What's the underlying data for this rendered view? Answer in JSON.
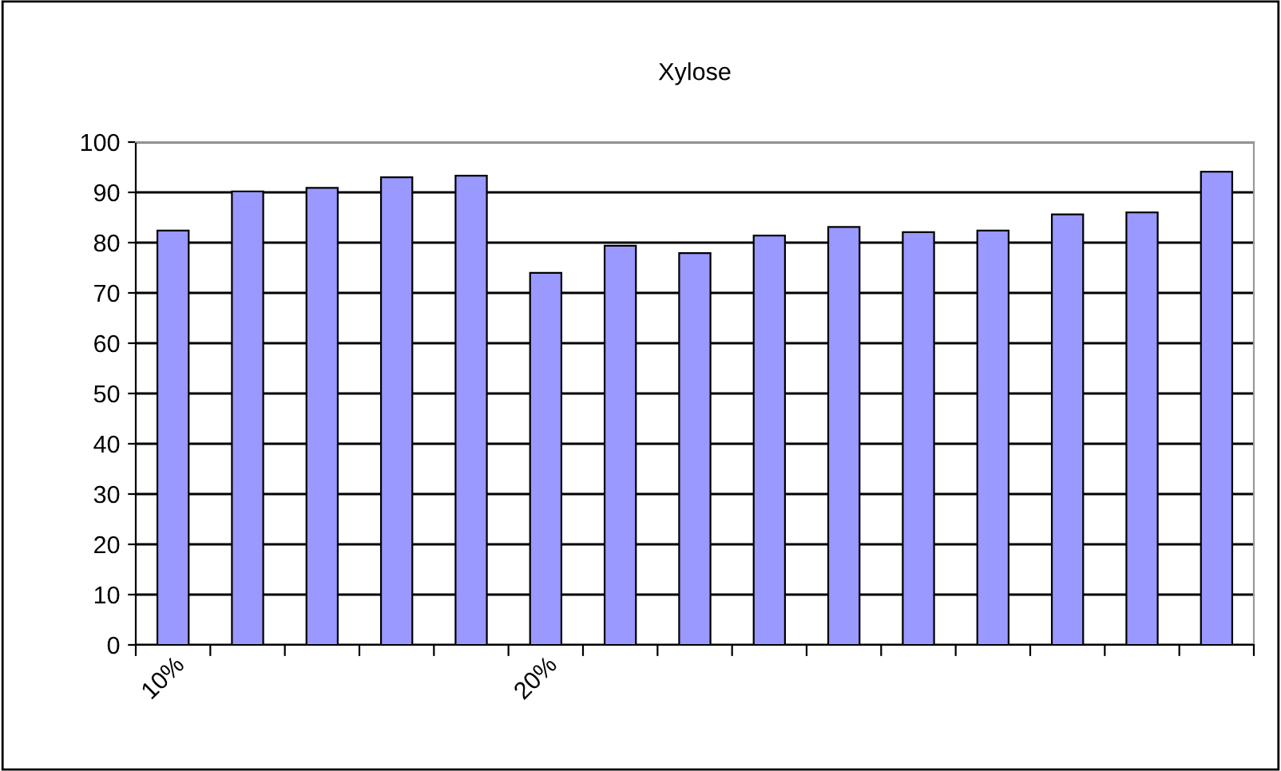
{
  "chart_data": {
    "type": "bar",
    "title": "Xylose",
    "categories": [
      "10%",
      null,
      null,
      null,
      null,
      "20%",
      null,
      null,
      null,
      null,
      null,
      null,
      null,
      null,
      null
    ],
    "values": [
      82.4,
      90.2,
      90.9,
      93.0,
      93.3,
      74.0,
      79.4,
      77.9,
      81.4,
      83.1,
      82.1,
      82.4,
      85.6,
      86.0,
      94.1
    ],
    "color": "#9999ff",
    "ylim": [
      0,
      100
    ],
    "yticks": [
      0,
      10,
      20,
      30,
      40,
      50,
      60,
      70,
      80,
      90,
      100
    ],
    "grid": "y",
    "legend": false
  }
}
